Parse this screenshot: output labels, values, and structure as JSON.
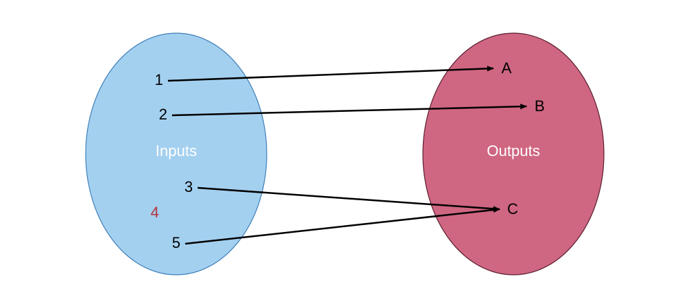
{
  "inputs": {
    "title": "Inputs",
    "fill": "#a4d0f0",
    "stroke": "#3e7fb8",
    "title_color": "#ffffff",
    "items": [
      "1",
      "2",
      "3",
      "4",
      "5"
    ],
    "unmapped_item_color": "#b5323c"
  },
  "outputs": {
    "title": "Outputs",
    "fill": "#cf6682",
    "stroke": "#5a1e2e",
    "title_color": "#ffffff",
    "items": [
      "A",
      "B",
      "C"
    ]
  },
  "mappings": [
    {
      "from": "1",
      "to": "A"
    },
    {
      "from": "2",
      "to": "B"
    },
    {
      "from": "3",
      "to": "C"
    },
    {
      "from": "5",
      "to": "C"
    }
  ],
  "arrow_color": "#000000"
}
